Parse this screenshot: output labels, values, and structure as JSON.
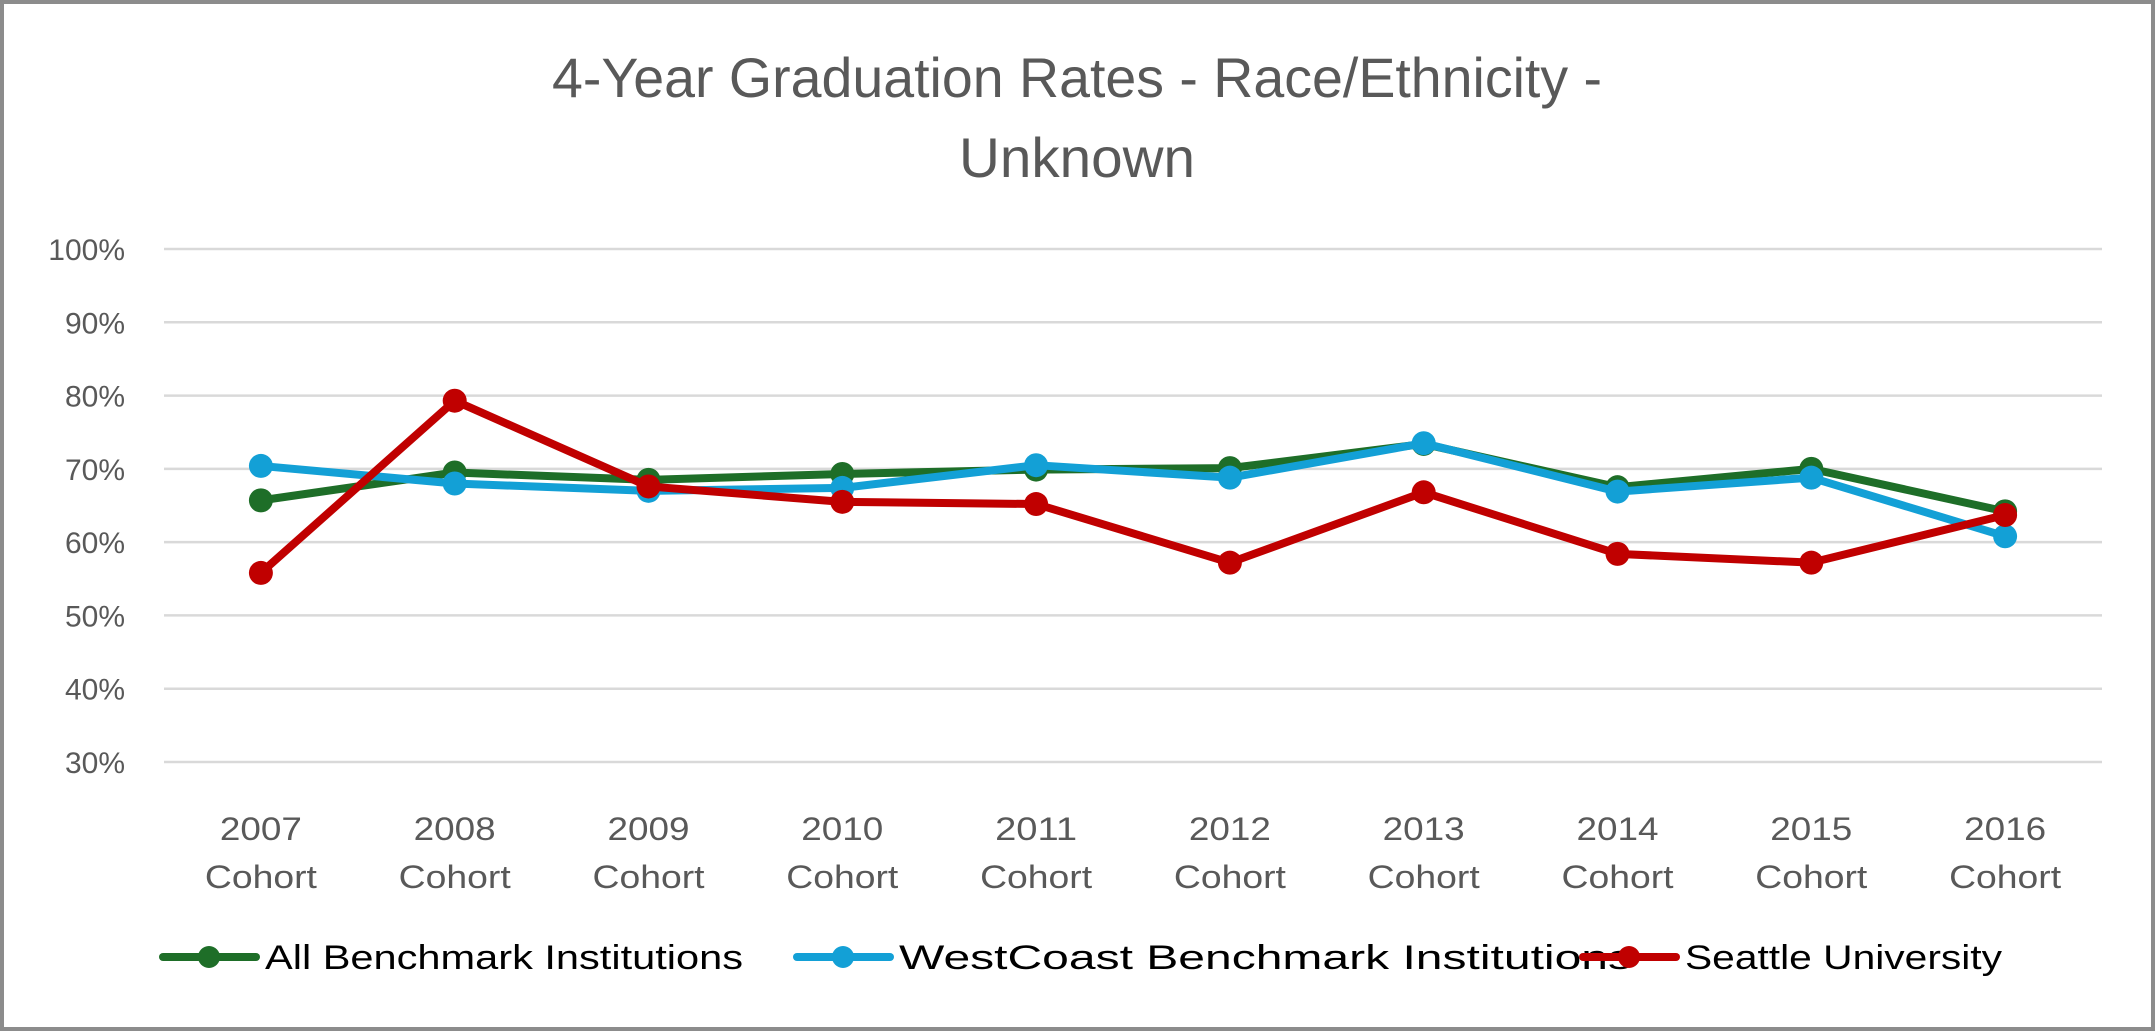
{
  "chart_data": {
    "type": "line",
    "title": "4-Year Graduation Rates - Race/Ethnicity - Unknown",
    "title_lines": [
      "4-Year Graduation Rates - Race/Ethnicity -",
      "Unknown"
    ],
    "xlabel": "",
    "ylabel": "",
    "categories": [
      [
        "2007",
        "Cohort"
      ],
      [
        "2008",
        "Cohort"
      ],
      [
        "2009",
        "Cohort"
      ],
      [
        "2010",
        "Cohort"
      ],
      [
        "2011",
        "Cohort"
      ],
      [
        "2012",
        "Cohort"
      ],
      [
        "2013",
        "Cohort"
      ],
      [
        "2014",
        "Cohort"
      ],
      [
        "2015",
        "Cohort"
      ],
      [
        "2016",
        "Cohort"
      ]
    ],
    "yticks": [
      "100%",
      "90%",
      "80%",
      "70%",
      "60%",
      "50%",
      "40%",
      "30%"
    ],
    "ytick_values": [
      100,
      90,
      80,
      70,
      60,
      50,
      40,
      30
    ],
    "ylim": [
      30,
      100
    ],
    "grid": true,
    "legend_position": "bottom",
    "series": [
      {
        "name": "All Benchmark Institutions",
        "color": "#1e6e28",
        "values": [
          65.7,
          69.5,
          68.5,
          69.3,
          69.9,
          70.1,
          73.4,
          67.5,
          70.0,
          64.2
        ]
      },
      {
        "name": "WestCoast Benchmark Institutions",
        "color": "#13a0d6",
        "values": [
          70.4,
          68.0,
          67.0,
          67.4,
          70.5,
          68.8,
          73.5,
          66.9,
          68.8,
          60.8
        ]
      },
      {
        "name": "Seattle University",
        "color": "#c00000",
        "values": [
          55.8,
          79.3,
          67.6,
          65.5,
          65.2,
          57.2,
          66.8,
          58.4,
          57.2,
          63.7
        ]
      }
    ]
  }
}
